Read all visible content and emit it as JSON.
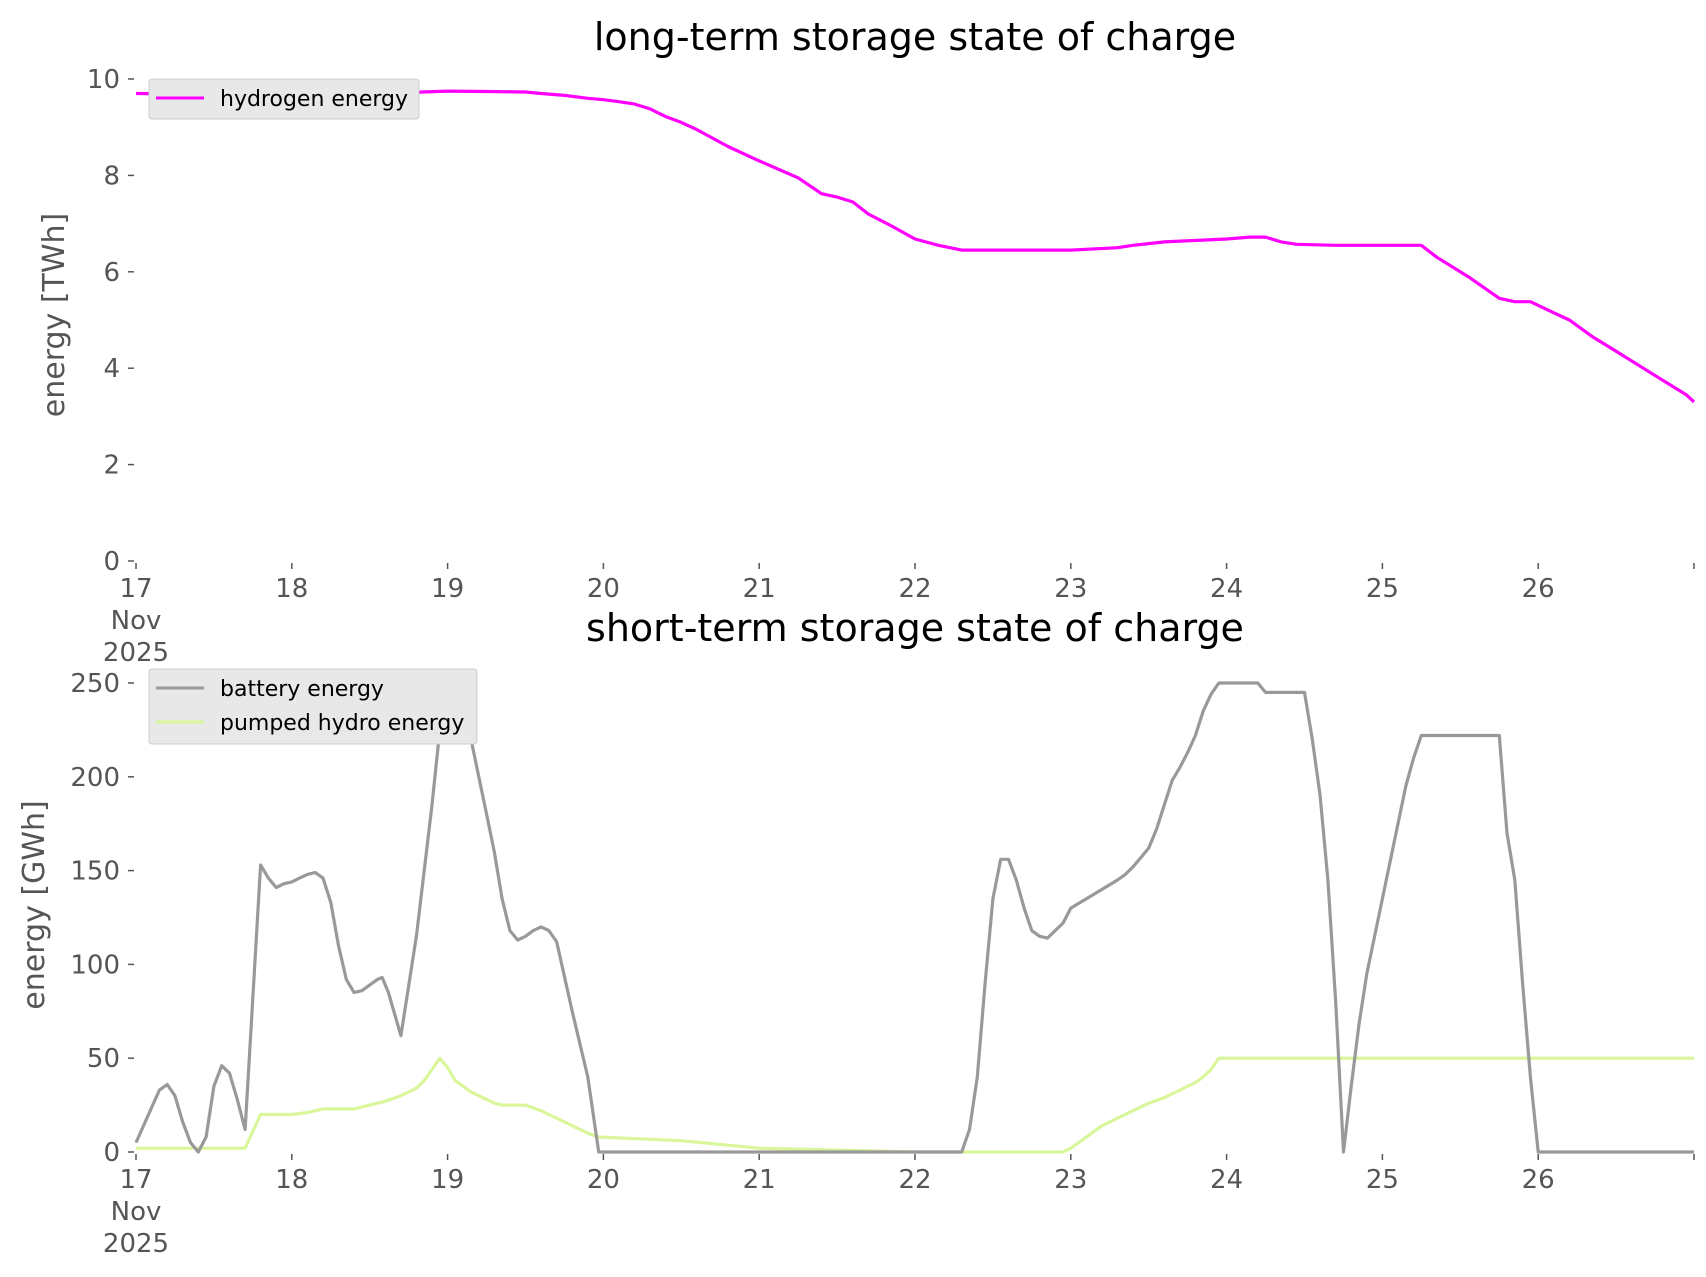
{
  "chart_data": [
    {
      "type": "line",
      "title": "long-term storage state of charge",
      "xlabel": "",
      "ylabel": "energy [TWh]",
      "xlim": [
        17,
        27
      ],
      "ylim": [
        0,
        10
      ],
      "xticks": [
        17,
        18,
        19,
        20,
        21,
        22,
        23,
        24,
        25,
        26
      ],
      "xtick_labels": [
        "17\nNov\n2025",
        "18",
        "19",
        "20",
        "21",
        "22",
        "23",
        "24",
        "25",
        "26"
      ],
      "yticks": [
        0,
        2,
        4,
        6,
        8,
        10
      ],
      "ytick_labels": [
        "0",
        "2",
        "4",
        "6",
        "8",
        "10"
      ],
      "grid": false,
      "legend_position": "top-left",
      "series": [
        {
          "name": "hydrogen energy",
          "color": "#ff00ff",
          "x": [
            17.0,
            17.5,
            18.0,
            18.5,
            18.75,
            19.0,
            19.25,
            19.5,
            19.6,
            19.75,
            19.9,
            20.0,
            20.1,
            20.2,
            20.3,
            20.4,
            20.5,
            20.6,
            20.8,
            21.0,
            21.25,
            21.4,
            21.5,
            21.6,
            21.7,
            21.85,
            22.0,
            22.15,
            22.3,
            22.5,
            23.0,
            23.3,
            23.4,
            23.6,
            24.0,
            24.15,
            24.25,
            24.35,
            24.45,
            24.7,
            25.0,
            25.25,
            25.35,
            25.55,
            25.75,
            25.85,
            25.95,
            26.1,
            26.2,
            26.35,
            26.5,
            26.65,
            26.8,
            26.95,
            27.0
          ],
          "values": [
            9.7,
            9.68,
            9.7,
            9.72,
            9.72,
            9.75,
            9.74,
            9.73,
            9.7,
            9.66,
            9.6,
            9.57,
            9.53,
            9.48,
            9.38,
            9.22,
            9.1,
            8.95,
            8.6,
            8.3,
            7.95,
            7.62,
            7.55,
            7.45,
            7.2,
            6.95,
            6.68,
            6.55,
            6.45,
            6.45,
            6.45,
            6.5,
            6.55,
            6.62,
            6.68,
            6.72,
            6.72,
            6.62,
            6.57,
            6.55,
            6.55,
            6.55,
            6.3,
            5.9,
            5.45,
            5.38,
            5.38,
            5.15,
            5.0,
            4.65,
            4.35,
            4.05,
            3.75,
            3.45,
            3.3
          ]
        }
      ]
    },
    {
      "type": "line",
      "title": "short-term storage state of charge",
      "xlabel": "",
      "ylabel": "energy [GWh]",
      "xlim": [
        17,
        27
      ],
      "ylim": [
        0,
        260
      ],
      "xticks": [
        17,
        18,
        19,
        20,
        21,
        22,
        23,
        24,
        25,
        26
      ],
      "xtick_labels": [
        "17\nNov\n2025",
        "18",
        "19",
        "20",
        "21",
        "22",
        "23",
        "24",
        "25",
        "26"
      ],
      "yticks": [
        0,
        50,
        100,
        150,
        200,
        250
      ],
      "ytick_labels": [
        "0",
        "50",
        "100",
        "150",
        "200",
        "250"
      ],
      "grid": false,
      "legend_position": "top-left",
      "series": [
        {
          "name": "battery energy",
          "color": "#999999",
          "x": [
            17.0,
            17.08,
            17.15,
            17.2,
            17.25,
            17.3,
            17.35,
            17.4,
            17.45,
            17.5,
            17.55,
            17.6,
            17.65,
            17.7,
            17.72,
            17.8,
            17.85,
            17.9,
            17.95,
            18.0,
            18.05,
            18.1,
            18.15,
            18.2,
            18.25,
            18.3,
            18.35,
            18.4,
            18.45,
            18.5,
            18.55,
            18.58,
            18.62,
            18.7,
            18.8,
            18.9,
            18.95,
            19.0,
            19.05,
            19.1,
            19.15,
            19.2,
            19.25,
            19.3,
            19.35,
            19.4,
            19.45,
            19.5,
            19.55,
            19.6,
            19.65,
            19.7,
            19.8,
            19.9,
            19.97,
            20.5,
            21.0,
            21.5,
            22.0,
            22.3,
            22.35,
            22.4,
            22.45,
            22.5,
            22.55,
            22.6,
            22.65,
            22.7,
            22.75,
            22.8,
            22.85,
            22.9,
            22.95,
            23.0,
            23.1,
            23.2,
            23.3,
            23.35,
            23.4,
            23.45,
            23.5,
            23.55,
            23.6,
            23.65,
            23.7,
            23.75,
            23.8,
            23.85,
            23.9,
            23.95,
            24.0,
            24.1,
            24.2,
            24.25,
            24.3,
            24.4,
            24.45,
            24.5,
            24.55,
            24.6,
            24.65,
            24.7,
            24.75,
            24.8,
            24.85,
            24.9,
            24.95,
            25.0,
            25.05,
            25.1,
            25.15,
            25.2,
            25.25,
            25.5,
            25.75,
            25.8,
            25.85,
            25.9,
            25.95,
            26.0,
            26.5,
            27.0
          ],
          "values": [
            5,
            20,
            33,
            36,
            30,
            16,
            5,
            0,
            8,
            35,
            46,
            42,
            28,
            12,
            40,
            153,
            146,
            141,
            143,
            144,
            146,
            148,
            149,
            146,
            133,
            110,
            92,
            85,
            86,
            89,
            92,
            93,
            85,
            62,
            115,
            185,
            225,
            250,
            240,
            230,
            220,
            200,
            180,
            160,
            135,
            118,
            113,
            115,
            118,
            120,
            118,
            112,
            75,
            40,
            0,
            0,
            0,
            0,
            0,
            0,
            12,
            40,
            90,
            135,
            156,
            156,
            145,
            130,
            118,
            115,
            114,
            118,
            122,
            130,
            135,
            140,
            145,
            148,
            152,
            157,
            162,
            172,
            185,
            198,
            205,
            213,
            222,
            235,
            244,
            250,
            250,
            250,
            250,
            245,
            245,
            245,
            245,
            245,
            220,
            190,
            145,
            80,
            0,
            35,
            68,
            95,
            115,
            135,
            155,
            175,
            195,
            210,
            222,
            222,
            222,
            170,
            145,
            90,
            40,
            0,
            0,
            0
          ],
          "x_note": ""
        },
        {
          "name": "pumped hydro energy",
          "color": "#d9f79a",
          "x": [
            17.0,
            17.7,
            17.8,
            18.0,
            18.1,
            18.2,
            18.4,
            18.5,
            18.6,
            18.7,
            18.8,
            18.85,
            18.9,
            18.95,
            19.0,
            19.05,
            19.1,
            19.15,
            19.2,
            19.25,
            19.3,
            19.35,
            19.4,
            19.5,
            19.6,
            19.7,
            19.8,
            19.9,
            19.97,
            20.5,
            21.0,
            21.5,
            22.0,
            22.5,
            22.95,
            23.0,
            23.1,
            23.2,
            23.3,
            23.4,
            23.5,
            23.6,
            23.7,
            23.8,
            23.85,
            23.9,
            23.95,
            24.0,
            24.5,
            25.0,
            25.5,
            26.0,
            26.5,
            27.0
          ],
          "values": [
            2,
            2,
            20,
            20,
            21,
            23,
            23,
            25,
            27,
            30,
            34,
            38,
            44,
            50,
            45,
            38,
            35,
            32,
            30,
            28,
            26,
            25,
            25,
            25,
            22,
            18,
            14,
            10,
            8,
            6,
            2,
            1,
            0,
            0,
            0,
            2,
            8,
            14,
            18,
            22,
            26,
            29,
            33,
            37,
            40,
            44,
            50,
            50,
            50,
            50,
            50,
            50,
            50,
            50
          ]
        }
      ]
    }
  ]
}
